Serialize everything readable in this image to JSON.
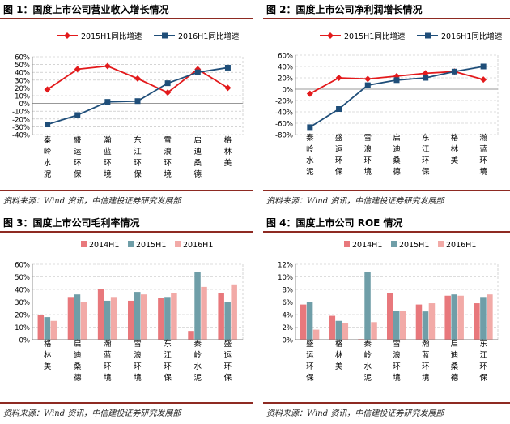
{
  "charts": [
    {
      "title": "图 1：国度上市公司营业收入增长情况",
      "source": "资料来源：Wind 资讯，中信建投证券研究发展部",
      "chart_data": {
        "type": "line",
        "categories": [
          "秦岭水泥",
          "盛运环保",
          "瀚蓝环境",
          "东江环保",
          "雪浪环境",
          "启迪桑德",
          "格林美"
        ],
        "series": [
          {
            "name": "2015H1同比增速",
            "color": "#e31a1c",
            "marker": "diamond",
            "values": [
              18,
              44,
              48,
              32,
              14,
              44,
              20
            ]
          },
          {
            "name": "2016H1同比增速",
            "color": "#1f4e79",
            "marker": "square",
            "values": [
              -27,
              -15,
              2,
              3,
              26,
              40,
              46
            ]
          }
        ],
        "yticks": [
          "60%",
          "50%",
          "40%",
          "30%",
          "20%",
          "10%",
          "0%",
          "-10%",
          "-20%",
          "-30%",
          "-40%"
        ],
        "ylim": [
          -40,
          60
        ]
      }
    },
    {
      "title": "图 2：国度上市公司净利润增长情况",
      "source": "资料来源：Wind 资讯，中信建投证券研究发展部",
      "chart_data": {
        "type": "line",
        "categories": [
          "秦岭水泥",
          "盛运环保",
          "雪浪环境",
          "启迪桑德",
          "东江环保",
          "格林美",
          "瀚蓝环境"
        ],
        "series": [
          {
            "name": "2015H1同比增速",
            "color": "#e31a1c",
            "marker": "diamond",
            "values": [
              -8,
              20,
              18,
              23,
              28,
              31,
              17
            ]
          },
          {
            "name": "2016H1同比增速",
            "color": "#1f4e79",
            "marker": "square",
            "values": [
              -67,
              -35,
              7,
              16,
              20,
              31,
              40
            ]
          }
        ],
        "yticks": [
          "60%",
          "40%",
          "20%",
          "0%",
          "-20%",
          "-40%",
          "-60%",
          "-80%"
        ],
        "ylim": [
          -80,
          60
        ]
      }
    },
    {
      "title": "图 3：国度上市公司毛利率情况",
      "source": "资料来源：Wind 资讯，中信建投证券研究发展部",
      "chart_data": {
        "type": "bar",
        "categories": [
          "格林美",
          "启迪桑德",
          "瀚蓝环境",
          "雪浪环境",
          "东江环保",
          "秦岭水泥",
          "盛运环保"
        ],
        "series": [
          {
            "name": "2014H1",
            "color": "#e8787c",
            "values": [
              20,
              34,
              40,
              31,
              33,
              7,
              37
            ]
          },
          {
            "name": "2015H1",
            "color": "#6f9ea8",
            "values": [
              18,
              36,
              31,
              38,
              34,
              54,
              30
            ]
          },
          {
            "name": "2016H1",
            "color": "#f2aaa7",
            "values": [
              15,
              30,
              34,
              36,
              37,
              42,
              44
            ]
          }
        ],
        "yticks": [
          "60%",
          "50%",
          "40%",
          "30%",
          "20%",
          "10%",
          "0%"
        ],
        "ylim": [
          0,
          60
        ]
      }
    },
    {
      "title": "图 4：国度上市公司 ROE 情况",
      "source": "资料来源：Wind 资讯，中信建投证券研究发展部",
      "chart_data": {
        "type": "bar",
        "categories": [
          "盛运环保",
          "格林美",
          "秦岭水泥",
          "雪浪环境",
          "瀚蓝环境",
          "启迪桑德",
          "东江环保"
        ],
        "series": [
          {
            "name": "2014H1",
            "color": "#e8787c",
            "values": [
              5.6,
              3.8,
              0.1,
              7.4,
              5.6,
              7.0,
              5.8
            ]
          },
          {
            "name": "2015H1",
            "color": "#6f9ea8",
            "values": [
              6.0,
              3.0,
              10.8,
              4.6,
              4.5,
              7.2,
              6.8
            ]
          },
          {
            "name": "2016H1",
            "color": "#f2aaa7",
            "values": [
              1.6,
              2.6,
              2.8,
              4.6,
              5.8,
              7.0,
              7.2
            ]
          }
        ],
        "yticks": [
          "12%",
          "10%",
          "8%",
          "6%",
          "4%",
          "2%",
          "0%"
        ],
        "ylim": [
          0,
          12
        ]
      }
    }
  ]
}
